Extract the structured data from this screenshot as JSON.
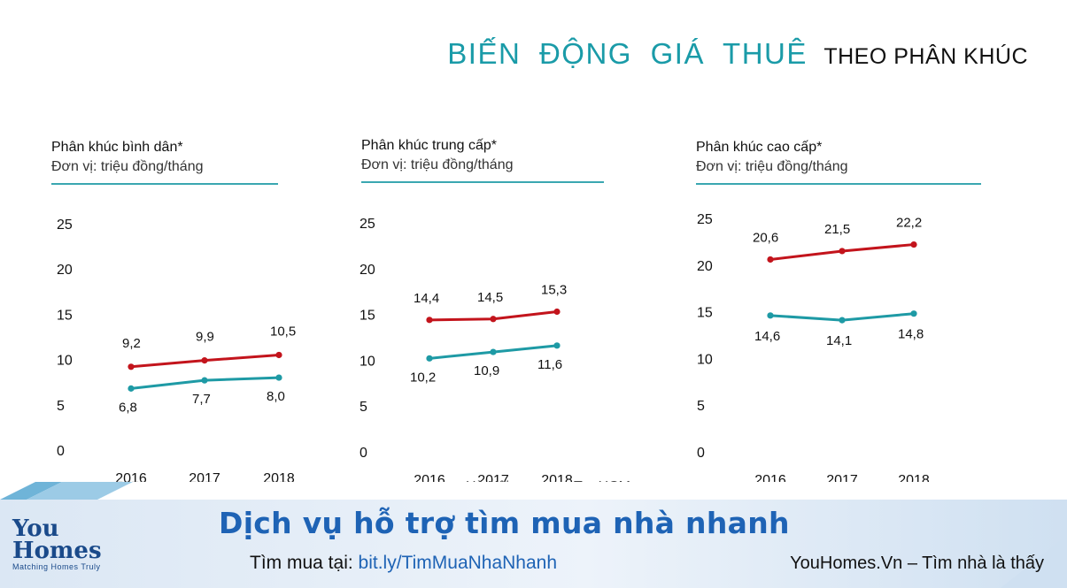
{
  "header": {
    "title_main": "BIẾN ĐỘNG GIÁ THUÊ",
    "title_sub": "THEO PHÂN KHÚC"
  },
  "legend": {
    "hanoi": "Hà Nội",
    "hcm": "Tp. HCM"
  },
  "colors": {
    "hanoi": "#c3141c",
    "hcm": "#1e9aa5",
    "accent": "#1a9ba8",
    "brand": "#1e63b5"
  },
  "chart_data": [
    {
      "type": "line",
      "panel_title": "Phân khúc bình dân*",
      "unit": "Đơn vị: triệu đồng/tháng",
      "categories": [
        "2016",
        "2017",
        "2018"
      ],
      "yticks": [
        "0",
        "5",
        "10",
        "15",
        "20",
        "25"
      ],
      "ylim": [
        0,
        25
      ],
      "series": [
        {
          "name": "Hà Nội",
          "values": [
            9.2,
            9.9,
            10.5
          ],
          "labels": [
            "9,2",
            "9,9",
            "10,5"
          ]
        },
        {
          "name": "Tp. HCM",
          "values": [
            6.8,
            7.7,
            8.0
          ],
          "labels": [
            "6,8",
            "7,7",
            "8,0"
          ]
        }
      ]
    },
    {
      "type": "line",
      "panel_title": "Phân khúc trung cấp*",
      "unit": "Đơn vị: triệu đồng/tháng",
      "categories": [
        "2016",
        "2017",
        "2018"
      ],
      "yticks": [
        "0",
        "5",
        "10",
        "15",
        "20",
        "25"
      ],
      "ylim": [
        0,
        25
      ],
      "series": [
        {
          "name": "Hà Nội",
          "values": [
            14.4,
            14.5,
            15.3
          ],
          "labels": [
            "14,4",
            "14,5",
            "15,3"
          ]
        },
        {
          "name": "Tp. HCM",
          "values": [
            10.2,
            10.9,
            11.6
          ],
          "labels": [
            "10,2",
            "10,9",
            "11,6"
          ]
        }
      ]
    },
    {
      "type": "line",
      "panel_title": "Phân khúc cao cấp*",
      "unit": "Đơn vị: triệu đồng/tháng",
      "categories": [
        "2016",
        "2017",
        "2018"
      ],
      "yticks": [
        "0",
        "5",
        "10",
        "15",
        "20",
        "25"
      ],
      "ylim": [
        0,
        25
      ],
      "series": [
        {
          "name": "Hà Nội",
          "values": [
            20.6,
            21.5,
            22.2
          ],
          "labels": [
            "20,6",
            "21,5",
            "22,2"
          ]
        },
        {
          "name": "Tp. HCM",
          "values": [
            14.6,
            14.1,
            14.8
          ],
          "labels": [
            "14,6",
            "14,1",
            "14,8"
          ]
        }
      ]
    }
  ],
  "footer": {
    "logo_line1": "You",
    "logo_line2": "Homes",
    "logo_tagline": "Matching Homes Truly",
    "promo": "Dịch vụ hỗ trợ tìm mua nhà nhanh",
    "find_label": "Tìm mua tại:",
    "find_link": "bit.ly/TimMuaNhaNhanh",
    "site": "YouHomes.Vn – Tìm nhà là thấy"
  }
}
